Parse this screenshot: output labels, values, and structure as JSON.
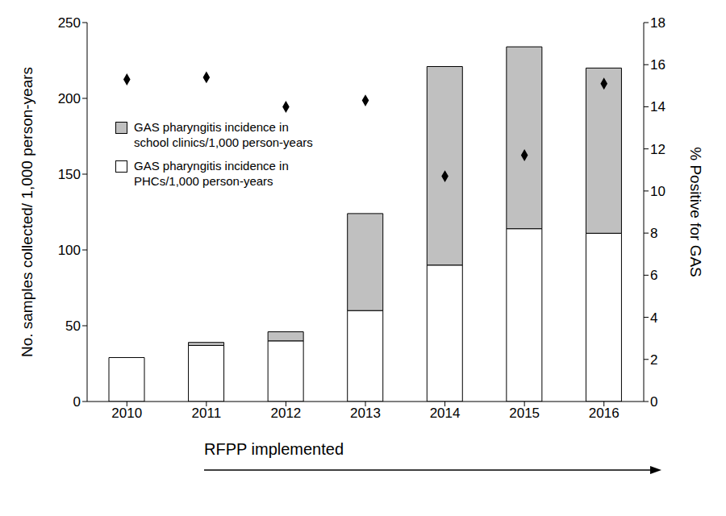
{
  "chart_data": {
    "type": "bar",
    "stacked": true,
    "grid": false,
    "legend": "upper left",
    "categories": [
      "2010",
      "2011",
      "2012",
      "2013",
      "2014",
      "2015",
      "2016"
    ],
    "series": [
      {
        "name": "GAS pharyngitis incidence in PHCs/1,000 person-years",
        "type": "bar",
        "color": "#ffffff",
        "axis": "y",
        "values": [
          29,
          37,
          40,
          60,
          90,
          114,
          111
        ]
      },
      {
        "name": "GAS pharyngitis incidence in school clinics/1,000 person-years",
        "type": "bar",
        "color": "#c0c0c0",
        "axis": "y",
        "values": [
          0,
          2,
          6,
          64,
          131,
          120,
          109
        ]
      },
      {
        "type": "scatter",
        "marker": "diamond",
        "color": "#000000",
        "axis": "y2",
        "values": [
          15.3,
          15.4,
          14.0,
          14.3,
          10.7,
          11.7,
          15.1
        ]
      }
    ],
    "ylabel": "No. samples collected/ 1,000 person-years",
    "y2label": "% Positive for GAS",
    "ylim": [
      0,
      250
    ],
    "yticks": [
      0,
      50,
      100,
      150,
      200,
      250
    ],
    "y2lim": [
      0,
      18
    ],
    "y2ticks": [
      0,
      2,
      4,
      6,
      8,
      10,
      12,
      14,
      16,
      18
    ],
    "annotation": "RFPP implemented"
  }
}
